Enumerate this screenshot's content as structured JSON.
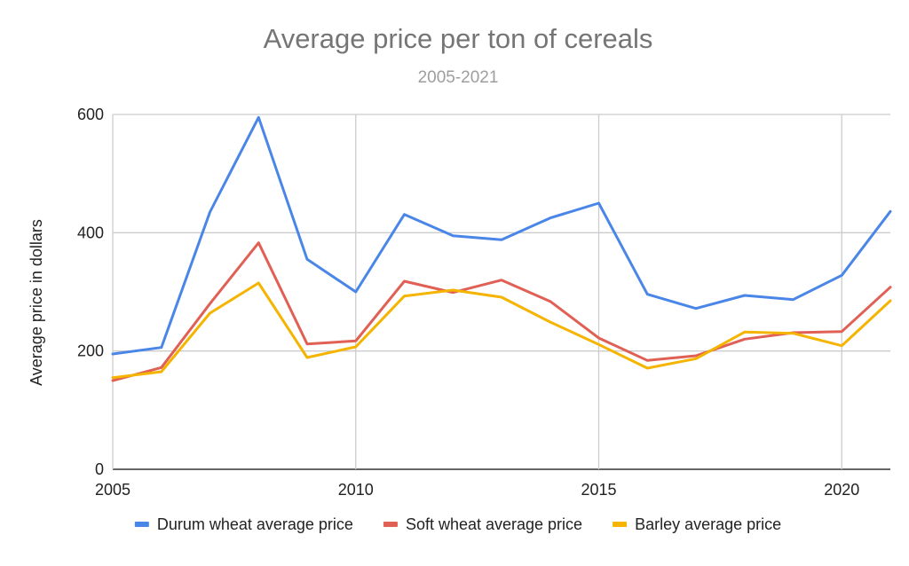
{
  "chart_data": {
    "type": "line",
    "title": "Average price per ton of cereals",
    "subtitle": "2005-2021",
    "xlabel": "",
    "ylabel": "Average price in dollars",
    "x": [
      2005,
      2006,
      2007,
      2008,
      2009,
      2010,
      2011,
      2012,
      2013,
      2014,
      2015,
      2016,
      2017,
      2018,
      2019,
      2020,
      2021
    ],
    "xlim": [
      2005,
      2021
    ],
    "ylim": [
      0,
      600
    ],
    "x_ticks": [
      "2005",
      "2010",
      "2015",
      "2020"
    ],
    "y_ticks": [
      "0",
      "200",
      "400",
      "600"
    ],
    "grid": true,
    "legend_position": "bottom",
    "series": [
      {
        "name": "Durum wheat average price",
        "color": "#4a86e8",
        "values": [
          195,
          206,
          435,
          595,
          355,
          300,
          431,
          395,
          388,
          425,
          450,
          296,
          272,
          294,
          287,
          328,
          436
        ]
      },
      {
        "name": "Soft wheat average price",
        "color": "#e06055",
        "values": [
          150,
          172,
          280,
          383,
          212,
          217,
          318,
          299,
          320,
          284,
          222,
          184,
          192,
          220,
          231,
          233,
          308
        ]
      },
      {
        "name": "Barley average price",
        "color": "#f4b400",
        "values": [
          155,
          165,
          264,
          315,
          189,
          207,
          293,
          303,
          291,
          249,
          211,
          171,
          187,
          232,
          230,
          209,
          285
        ]
      }
    ]
  }
}
